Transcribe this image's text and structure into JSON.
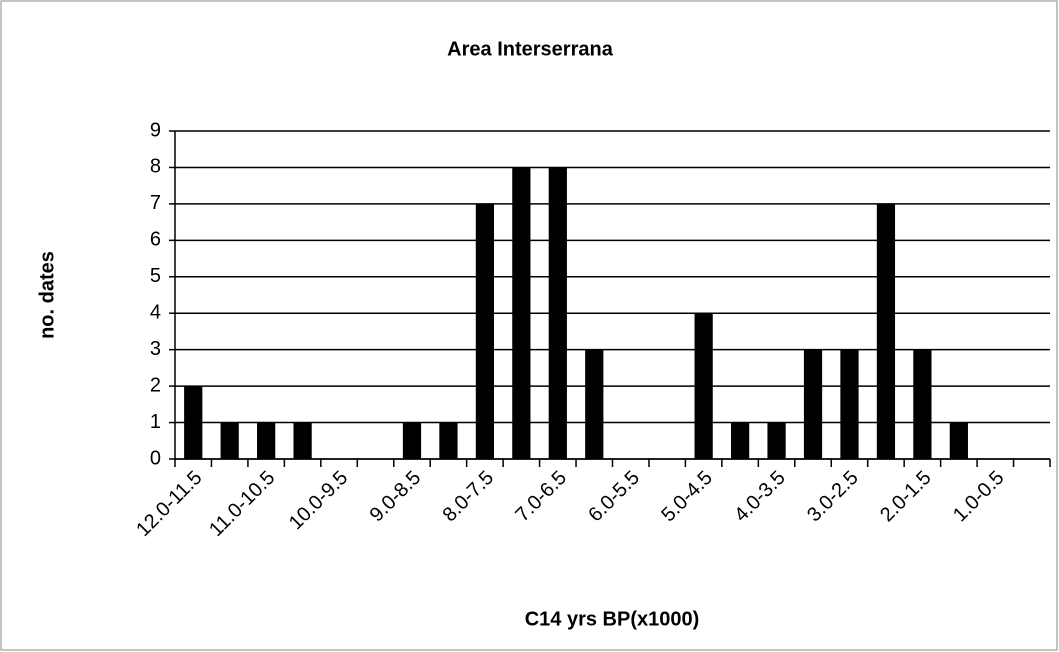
{
  "chart_data": {
    "type": "bar",
    "title": "Area Interserrana",
    "x_label": "C14 yrs BP(x1000)",
    "y_label": "no. dates",
    "categories": [
      "12.0-11.5",
      null,
      "11.0-10.5",
      null,
      "10.0-9.5",
      null,
      "9.0-8.5",
      null,
      "8.0-7.5",
      null,
      "7.0-6.5",
      null,
      "6.0-5.5",
      null,
      "5.0-4.5",
      null,
      "4.0-3.5",
      null,
      "3.0-2.5",
      null,
      "2.0-1.5",
      null,
      "1.0-0.5",
      null
    ],
    "values": [
      2,
      1,
      1,
      1,
      0,
      0,
      1,
      1,
      7,
      8,
      8,
      3,
      0,
      0,
      4,
      1,
      1,
      3,
      3,
      7,
      3,
      1,
      0,
      0
    ],
    "color": "#000000",
    "ylim": [
      0,
      9
    ],
    "yticks": [
      0,
      1,
      2,
      3,
      4,
      5,
      6,
      7,
      8,
      9
    ],
    "grid": true
  }
}
